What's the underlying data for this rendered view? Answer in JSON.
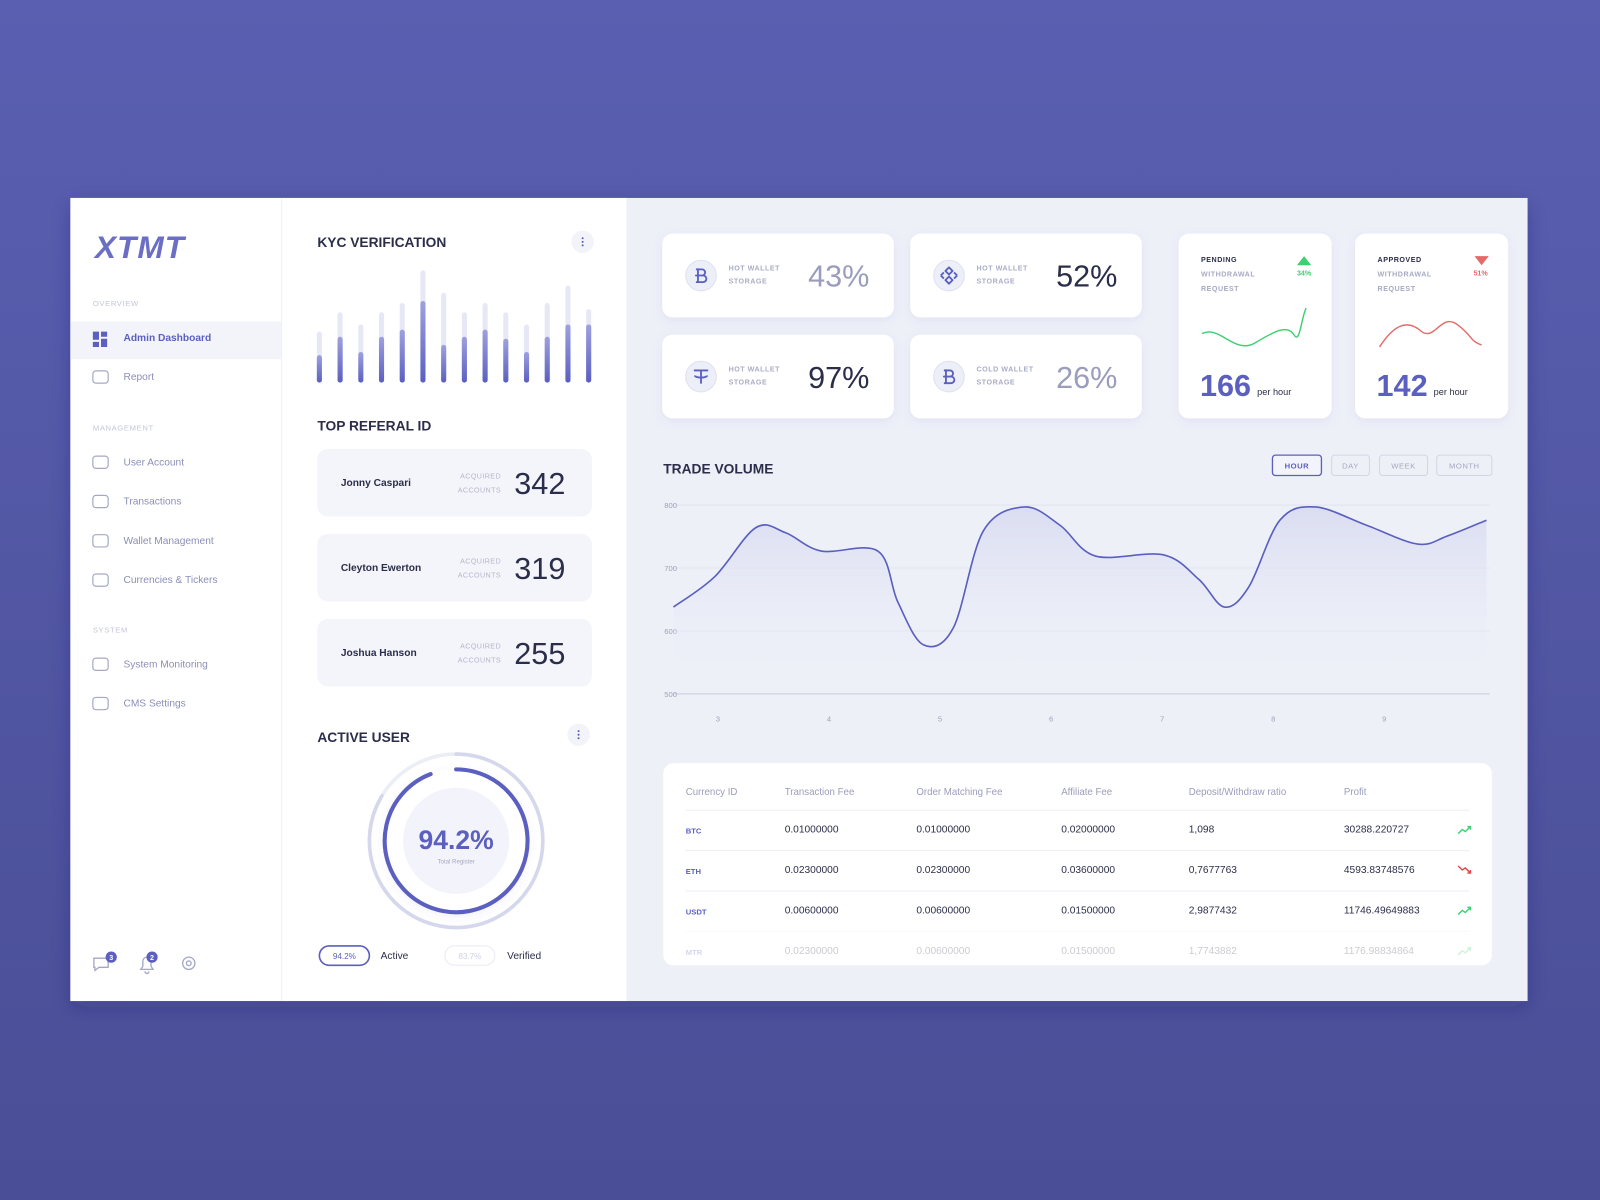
{
  "sidebar": {
    "logo": "XTMT",
    "sections": [
      {
        "label": "OVERVIEW",
        "items": [
          "Admin Dashboard",
          "Report"
        ]
      },
      {
        "label": "MANAGEMENT",
        "items": [
          "User Account",
          "Transactions",
          "Wallet Management",
          "Currencies & Tickers"
        ]
      },
      {
        "label": "SYSTEM",
        "items": [
          "System Monitoring",
          "CMS Settings"
        ]
      }
    ],
    "active_item": "Admin Dashboard",
    "badges": [
      3,
      2
    ]
  },
  "kyc": {
    "title": "KYC VERIFICATION",
    "chart": {
      "type": "bar",
      "ylim": [
        0,
        120
      ],
      "values": [
        50,
        69,
        57,
        69,
        78,
        110,
        88,
        69,
        78,
        69,
        57,
        78,
        95,
        72
      ],
      "filled": [
        27,
        45,
        30,
        45,
        52,
        80,
        37,
        45,
        52,
        43,
        30,
        45,
        57,
        57
      ],
      "color": "#6b6fc4"
    }
  },
  "referral": {
    "title": "TOP REFERAL ID",
    "items": [
      {
        "name": "Jonny Caspari",
        "label": [
          "ACQUIRED",
          "ACCOUNTS"
        ],
        "value": 342
      },
      {
        "name": "Cleyton Ewerton",
        "label": [
          "ACQUIRED",
          "ACCOUNTS"
        ],
        "value": 319
      },
      {
        "name": "Joshua Hanson",
        "label": [
          "ACQUIRED",
          "ACCOUNTS"
        ],
        "value": 255
      }
    ]
  },
  "active_user": {
    "title": "ACTIVE USER",
    "center_label": "Total Register",
    "series": [
      {
        "name": "Active",
        "value": 94.2,
        "label": "94.2%",
        "color": "#5a5fc0"
      },
      {
        "name": "Verified",
        "value": 83.7,
        "label": "83.7%",
        "color": "#d5d8ec"
      }
    ]
  },
  "wallets": [
    {
      "label": [
        "HOT WALLET",
        "STORAGE"
      ],
      "value": "43%",
      "coin": "btc",
      "muted": true
    },
    {
      "label": [
        "HOT WALLET",
        "STORAGE"
      ],
      "value": "52%",
      "coin": "bnb",
      "muted": false
    },
    {
      "label": [
        "HOT WALLET",
        "STORAGE"
      ],
      "value": "97%",
      "coin": "usdt",
      "muted": false
    },
    {
      "label": [
        "COLD WALLET",
        "STORAGE"
      ],
      "value": "26%",
      "coin": "btc",
      "muted": true
    }
  ],
  "requests": [
    {
      "title": [
        "PENDING",
        "WITHDRAWAL",
        "REQUEST"
      ],
      "change": "34%",
      "trend": "up",
      "value": 166,
      "unit": "per hour"
    },
    {
      "title": [
        "APPROVED",
        "WITHDRAWAL",
        "REQUEST"
      ],
      "change": "51%",
      "trend": "down",
      "value": 142,
      "unit": "per hour"
    }
  ],
  "trade_volume": {
    "title": "TRADE VOLUME",
    "tabs": [
      "HOUR",
      "DAY",
      "WEEK",
      "MONTH"
    ],
    "active_tab": 0,
    "chart": {
      "type": "line",
      "x": [
        2.6,
        2.97,
        3.34,
        3.61,
        3.93,
        4.44,
        4.62,
        4.85,
        5.12,
        5.39,
        5.76,
        6.08,
        6.4,
        7.01,
        7.33,
        7.56,
        7.78,
        8.06,
        8.38,
        8.84,
        9.3,
        9.57,
        9.92
      ],
      "values": [
        638,
        686,
        764,
        756,
        727,
        727,
        646,
        578,
        605,
        759,
        797,
        768,
        719,
        721,
        682,
        638,
        670,
        776,
        797,
        768,
        738,
        751,
        776
      ],
      "xlim": [
        2.6,
        9.95
      ],
      "ylim": [
        500,
        800
      ],
      "xticks": [
        3,
        4,
        5,
        6,
        7,
        8,
        9
      ],
      "yticks": [
        500,
        600,
        700,
        800
      ],
      "grid": true,
      "color": "#5a5fc0"
    }
  },
  "table": {
    "headers": [
      "Currency ID",
      "Transaction Fee",
      "Order Matching Fee",
      "Affiliate Fee",
      "Deposit/Withdraw ratio",
      "Profit"
    ],
    "rows": [
      [
        "BTC",
        "0.01000000",
        "0.01000000",
        "0.02000000",
        "1,098",
        "30288.220727"
      ],
      [
        "ETH",
        "0.02300000",
        "0.02300000",
        "0.03600000",
        "0,7677763",
        "4593.83748576"
      ],
      [
        "USDT",
        "0.00600000",
        "0.00600000",
        "0.01500000",
        "2,9877432",
        "11746.49649883"
      ],
      [
        "MTR",
        "0.02300000",
        "0.00600000",
        "0.01500000",
        "1,7743882",
        "1176.98834864"
      ]
    ],
    "trends": [
      "up",
      "down",
      "up",
      "up"
    ]
  }
}
